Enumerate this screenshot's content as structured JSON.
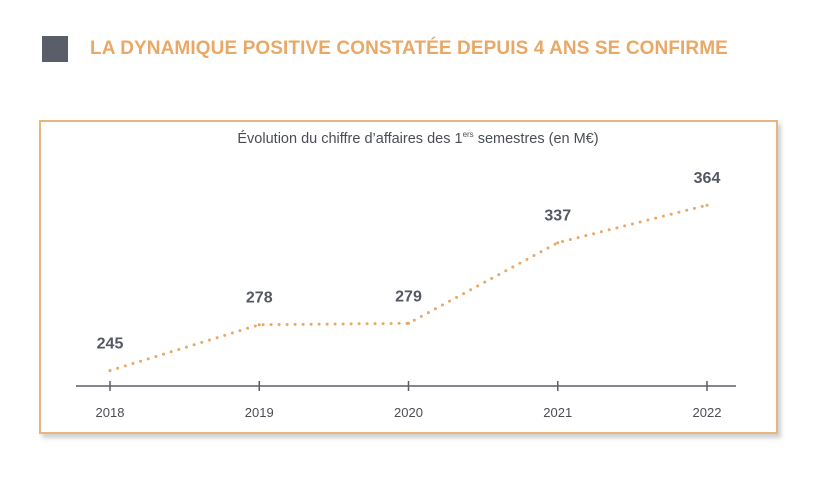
{
  "header": {
    "title": "LA DYNAMIQUE POSITIVE CONSTATÉE DEPUIS 4 ANS SE CONFIRME"
  },
  "colors": {
    "accent": "#e9a866",
    "header_square": "#5a5e69",
    "axis": "#5a5e69",
    "label": "#545862"
  },
  "chart_data": {
    "type": "line",
    "title_parts": {
      "before": "Évolution du chiffre d’affaires des 1",
      "sup": "ers",
      "after": " semestres (en M€)"
    },
    "categories": [
      "2018",
      "2019",
      "2020",
      "2021",
      "2022"
    ],
    "series": [
      {
        "values": [
          245,
          278,
          279,
          337,
          364
        ],
        "line_style": "dotted",
        "color": "#e9a866"
      }
    ],
    "data_labels": [
      "245",
      "278",
      "279",
      "337",
      "364"
    ],
    "xlabel": "",
    "ylabel": "",
    "ylim": [
      226,
      385
    ],
    "grid": false,
    "legend": "none"
  }
}
